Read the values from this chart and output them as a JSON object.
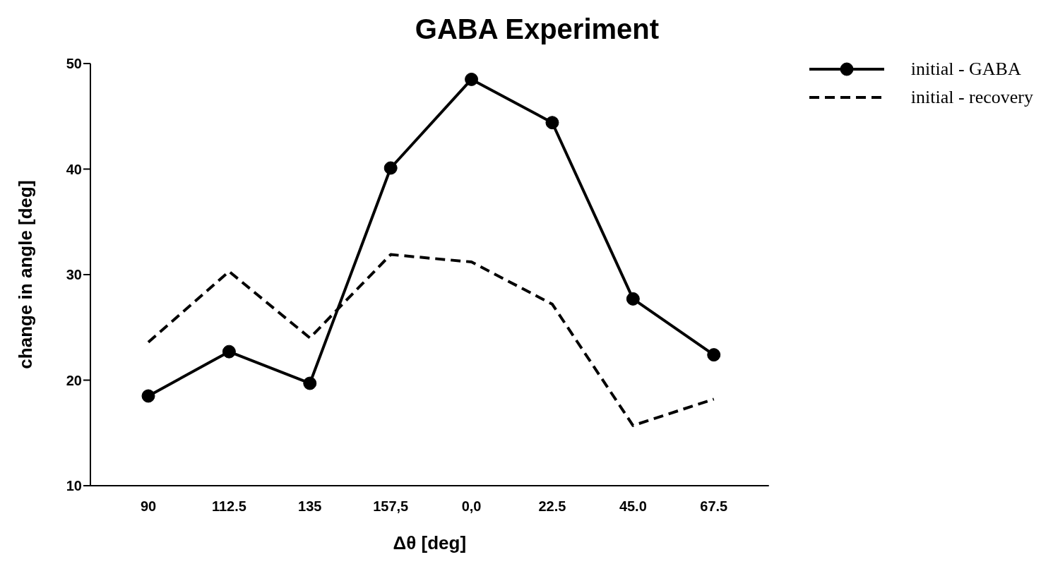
{
  "chart_data": {
    "type": "line",
    "title": "GABA Experiment",
    "xlabel": "Δθ  [deg]",
    "ylabel": "change in angle [deg]",
    "categories": [
      "90",
      "112.5",
      "135",
      "157,5",
      "0,0",
      "22.5",
      "45.0",
      "67.5"
    ],
    "series": [
      {
        "name": "initial - GABA",
        "color": "#000000",
        "values": [
          18.5,
          22.7,
          19.7,
          40.1,
          48.5,
          44.4,
          27.7,
          22.4
        ],
        "marker": "circle",
        "line_style": "solid"
      },
      {
        "name": "initial - recovery",
        "color": "#000000",
        "values": [
          23.6,
          30.3,
          24.0,
          31.9,
          31.2,
          27.2,
          15.7,
          18.2
        ],
        "marker": "none",
        "line_style": "dashed"
      }
    ],
    "ylim": [
      10,
      50
    ],
    "yticks": [
      10,
      20,
      30,
      40,
      50
    ],
    "grid": false,
    "legend": "top right"
  }
}
